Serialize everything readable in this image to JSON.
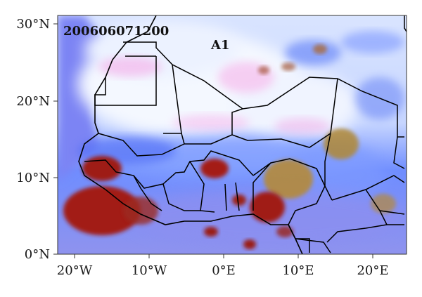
{
  "map": {
    "timestamp": "200606071200",
    "panel_label": "A1",
    "lat_labels": [
      "30°N",
      "20°N",
      "10°N",
      "0°N"
    ],
    "lon_labels": [
      "20°W",
      "10°W",
      "0°E",
      "10°E",
      "20°E"
    ],
    "colors": {
      "dry_air": "#f2f6ff",
      "mid_cloud": "#8aa6ff",
      "deep_convection": "#a01e14",
      "ocean": "#7f86f2",
      "dust_high": "#f5c2f2",
      "orange_cloud": "#b8862c",
      "borders": "#000000"
    }
  }
}
